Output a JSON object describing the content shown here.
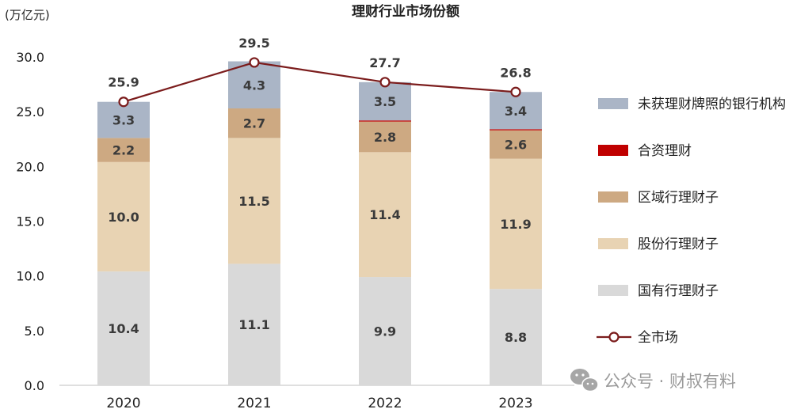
{
  "chart_data": {
    "type": "bar",
    "stacked": true,
    "title": "理财行业市场份额",
    "unit_label": "(万亿元)",
    "categories": [
      "2020",
      "2021",
      "2022",
      "2023"
    ],
    "ylim": [
      0,
      30
    ],
    "yticks": [
      "0.0",
      "5.0",
      "10.0",
      "15.0",
      "20.0",
      "25.0",
      "30.0"
    ],
    "grid": false,
    "legend_position": "right",
    "series": [
      {
        "name": "国有行理财子",
        "color": "#d9d9d9",
        "values": [
          10.4,
          11.1,
          9.9,
          8.8
        ],
        "labels": [
          "10.4",
          "11.1",
          "9.9",
          "8.8"
        ]
      },
      {
        "name": "股份行理财子",
        "color": "#e8d3b3",
        "values": [
          10.0,
          11.5,
          11.4,
          11.9
        ],
        "labels": [
          "10.0",
          "11.5",
          "11.4",
          "11.9"
        ]
      },
      {
        "name": "区域行理财子",
        "color": "#cda982",
        "values": [
          2.2,
          2.7,
          2.8,
          2.6
        ],
        "labels": [
          "2.2",
          "2.7",
          "2.8",
          "2.6"
        ]
      },
      {
        "name": "合资理财",
        "color": "#c00000",
        "values": [
          0.0,
          0.0,
          0.1,
          0.1
        ],
        "labels": [
          "",
          "",
          "",
          ""
        ]
      },
      {
        "name": "未获理财牌照的银行机构",
        "color": "#aab5c6",
        "values": [
          3.3,
          4.3,
          3.5,
          3.4
        ],
        "labels": [
          "3.3",
          "4.3",
          "3.5",
          "3.4"
        ]
      }
    ],
    "line_series": {
      "name": "全市场",
      "color": "#7b1c1c",
      "values": [
        25.9,
        29.5,
        27.7,
        26.8
      ],
      "labels": [
        "25.9",
        "29.5",
        "27.7",
        "26.8"
      ]
    },
    "legend_order": [
      "未获理财牌照的银行机构",
      "合资理财",
      "区域行理财子",
      "股份行理财子",
      "国有行理财子",
      "全市场"
    ]
  },
  "watermark": "公众号 · 财叔有料"
}
